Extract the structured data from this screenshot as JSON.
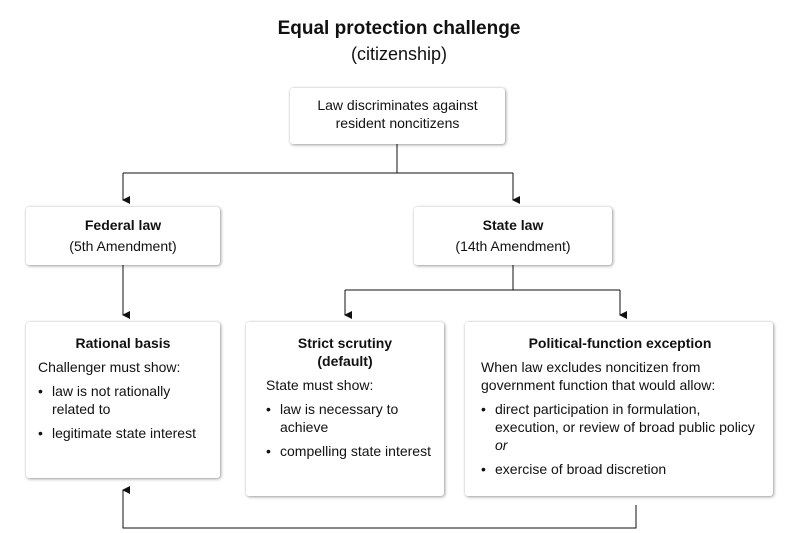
{
  "title": "Equal protection challenge",
  "subtitle": "(citizenship)",
  "root": {
    "line1": "Law discriminates against",
    "line2": "resident noncitizens"
  },
  "federal": {
    "title": "Federal law",
    "subtitle": "(5th Amendment)"
  },
  "state": {
    "title": "State law",
    "subtitle": "(14th Amendment)"
  },
  "rational": {
    "title": "Rational basis",
    "intro": "Challenger must show:",
    "items": [
      "law is not rationally related to",
      "legitimate state interest"
    ]
  },
  "strict": {
    "title_line1": "Strict scrutiny",
    "title_line2": "(default)",
    "intro": "State must show:",
    "items": [
      "law is necessary to achieve",
      "compelling state interest"
    ]
  },
  "political": {
    "title": "Political-function exception",
    "intro": "When law excludes noncitizen from government function that would allow:",
    "item1_text": "direct participation in formulation, execution, or review of broad public policy",
    "item1_em": "or",
    "item2": "exercise of broad discretion"
  }
}
